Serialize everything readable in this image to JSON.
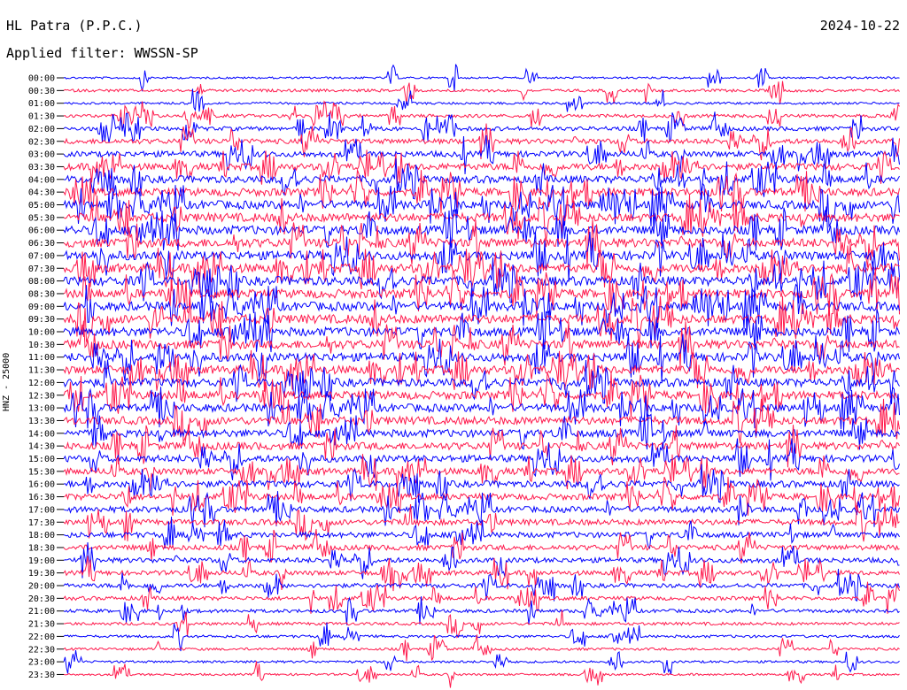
{
  "header": {
    "station": "HL Patra (P.P.C.)",
    "filter": "Applied filter: WWSSN-SP",
    "date": "2024-10-22"
  },
  "channel_label": "HNZ - 25000",
  "colors": {
    "odd_trace": "#0000ff",
    "even_trace": "#ff1a4d"
  },
  "chart_data": {
    "type": "line",
    "title": "HL Patra (P.P.C.)",
    "subtitle": "Applied filter: WWSSN-SP",
    "ylabel": "HNZ - 25000",
    "xlabel": "",
    "rows": [
      "00:00",
      "00:30",
      "01:00",
      "01:30",
      "02:00",
      "02:30",
      "03:00",
      "03:30",
      "04:00",
      "04:30",
      "05:00",
      "05:30",
      "06:00",
      "06:30",
      "07:00",
      "07:30",
      "08:00",
      "08:30",
      "09:00",
      "09:30",
      "10:00",
      "10:30",
      "11:00",
      "11:30",
      "12:00",
      "12:30",
      "13:00",
      "13:30",
      "14:00",
      "14:30",
      "15:00",
      "15:30",
      "16:00",
      "16:30",
      "17:00",
      "17:30",
      "18:00",
      "18:30",
      "19:00",
      "19:30",
      "20:00",
      "20:30",
      "21:00",
      "21:30",
      "22:00",
      "22:30",
      "23:00",
      "23:30"
    ],
    "activity": [
      0.12,
      0.22,
      0.16,
      0.28,
      0.38,
      0.5,
      0.58,
      0.7,
      0.78,
      0.85,
      0.9,
      0.92,
      0.95,
      0.97,
      0.98,
      0.98,
      0.98,
      0.97,
      0.97,
      0.96,
      0.95,
      0.94,
      0.93,
      0.9,
      0.9,
      0.88,
      0.85,
      0.85,
      0.8,
      0.78,
      0.72,
      0.7,
      0.68,
      0.65,
      0.62,
      0.58,
      0.55,
      0.52,
      0.5,
      0.45,
      0.4,
      0.36,
      0.3,
      0.24,
      0.2,
      0.18,
      0.16,
      0.14
    ],
    "grid": false
  }
}
